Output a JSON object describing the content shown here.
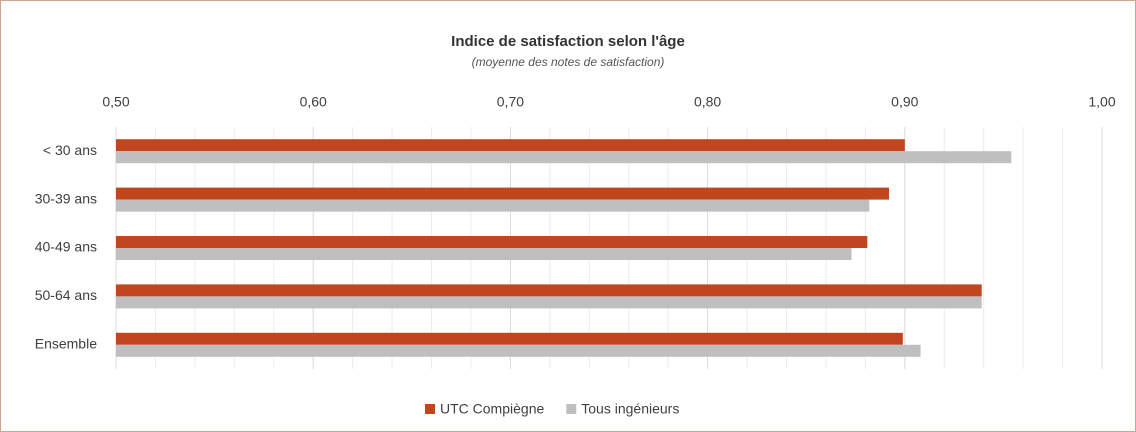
{
  "chart_data": {
    "type": "bar",
    "orientation": "horizontal",
    "title": "Indice de satisfaction selon l'âge",
    "subtitle": "(moyenne des notes de satisfaction)",
    "categories": [
      "< 30 ans",
      "30-39 ans",
      "40-49 ans",
      "50-64 ans",
      "Ensemble"
    ],
    "series": [
      {
        "name": "UTC Compiègne",
        "color": "#c0461e",
        "values": [
          0.9,
          0.892,
          0.881,
          0.939,
          0.899
        ]
      },
      {
        "name": "Tous ingénieurs",
        "color": "#bfbfbf",
        "values": [
          0.954,
          0.882,
          0.873,
          0.939,
          0.908
        ]
      }
    ],
    "xlim": [
      0.5,
      1.0
    ],
    "xticks": [
      {
        "value": 0.5,
        "label": "0,50"
      },
      {
        "value": 0.6,
        "label": "0,60"
      },
      {
        "value": 0.7,
        "label": "0,70"
      },
      {
        "value": 0.8,
        "label": "0,80"
      },
      {
        "value": 0.9,
        "label": "0,90"
      },
      {
        "value": 1.0,
        "label": "1,00"
      }
    ],
    "xminor_ticks": [
      0.52,
      0.54,
      0.56,
      0.58,
      0.62,
      0.64,
      0.66,
      0.68,
      0.72,
      0.74,
      0.76,
      0.78,
      0.82,
      0.84,
      0.86,
      0.88,
      0.92,
      0.94,
      0.96,
      0.98
    ],
    "grid": true,
    "legend": "bottom"
  }
}
